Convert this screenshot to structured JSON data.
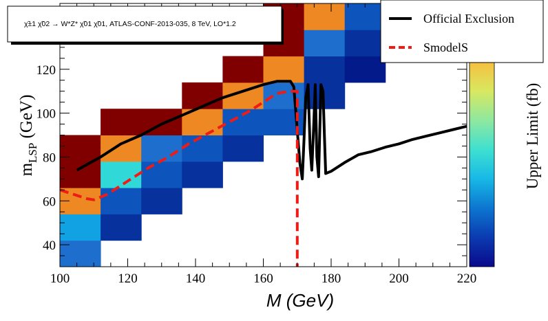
{
  "chart_data": {
    "type": "heatmap",
    "title": "χ̃±1 χ̃02 → W*Z* χ̃01 χ̃01, ATLAS-CONF-2013-035, 8 TeV, LO*1.2",
    "xlabel": "M (GeV)",
    "ylabel": "m",
    "ylabel_subscript": "LSP",
    "ylabel_unit": " (GeV)",
    "colorbar_label": "Upper Limit (fb)",
    "xlim": [
      100,
      220
    ],
    "ylim": [
      30,
      150
    ],
    "xticks": [
      100,
      120,
      140,
      160,
      180,
      200,
      220
    ],
    "yticks": [
      40,
      60,
      80,
      100,
      120
    ],
    "grid": false,
    "legend_position": "top-right",
    "colors": {
      "dark_red": "#800000",
      "orange": "#ee8822",
      "mid_blue": "#1e6fcd",
      "blue": "#0e54bd",
      "dark_blue": "#07319c",
      "navy": "#021a8a",
      "light_blue": "#11a2e4",
      "cyan": "#30d8d8",
      "official_line": "#000000",
      "smodels_line": "#ee1c16"
    },
    "colorbar_gradient": [
      "#0a0a8c",
      "#0b3ab0",
      "#0c76d0",
      "#17b8e6",
      "#3ee0d0",
      "#8ee8a0",
      "#d8e860",
      "#f6c040",
      "#f48a2c",
      "#f05a22"
    ],
    "cells": [
      {
        "x0": 100,
        "x1": 112,
        "y0": 30,
        "y1": 42,
        "color": "mid_blue"
      },
      {
        "x0": 100,
        "x1": 112,
        "y0": 42,
        "y1": 54,
        "color": "light_blue"
      },
      {
        "x0": 100,
        "x1": 112,
        "y0": 54,
        "y1": 66,
        "color": "orange"
      },
      {
        "x0": 100,
        "x1": 112,
        "y0": 66,
        "y1": 78,
        "color": "dark_red"
      },
      {
        "x0": 100,
        "x1": 112,
        "y0": 78,
        "y1": 90,
        "color": "dark_red"
      },
      {
        "x0": 112,
        "x1": 124,
        "y0": 42,
        "y1": 54,
        "color": "dark_blue"
      },
      {
        "x0": 112,
        "x1": 124,
        "y0": 54,
        "y1": 66,
        "color": "blue"
      },
      {
        "x0": 112,
        "x1": 124,
        "y0": 66,
        "y1": 78,
        "color": "cyan"
      },
      {
        "x0": 112,
        "x1": 124,
        "y0": 78,
        "y1": 90,
        "color": "orange"
      },
      {
        "x0": 112,
        "x1": 124,
        "y0": 90,
        "y1": 102,
        "color": "dark_red"
      },
      {
        "x0": 124,
        "x1": 136,
        "y0": 54,
        "y1": 66,
        "color": "dark_blue"
      },
      {
        "x0": 124,
        "x1": 136,
        "y0": 66,
        "y1": 78,
        "color": "blue"
      },
      {
        "x0": 124,
        "x1": 136,
        "y0": 78,
        "y1": 90,
        "color": "mid_blue"
      },
      {
        "x0": 124,
        "x1": 136,
        "y0": 90,
        "y1": 102,
        "color": "dark_red"
      },
      {
        "x0": 136,
        "x1": 148,
        "y0": 66,
        "y1": 78,
        "color": "dark_blue"
      },
      {
        "x0": 136,
        "x1": 148,
        "y0": 78,
        "y1": 90,
        "color": "blue"
      },
      {
        "x0": 136,
        "x1": 148,
        "y0": 90,
        "y1": 102,
        "color": "orange"
      },
      {
        "x0": 136,
        "x1": 148,
        "y0": 102,
        "y1": 114,
        "color": "dark_red"
      },
      {
        "x0": 148,
        "x1": 160,
        "y0": 78,
        "y1": 90,
        "color": "dark_blue"
      },
      {
        "x0": 148,
        "x1": 160,
        "y0": 90,
        "y1": 102,
        "color": "blue"
      },
      {
        "x0": 148,
        "x1": 160,
        "y0": 102,
        "y1": 114,
        "color": "orange"
      },
      {
        "x0": 148,
        "x1": 160,
        "y0": 114,
        "y1": 126,
        "color": "dark_red"
      },
      {
        "x0": 160,
        "x1": 172,
        "y0": 90,
        "y1": 102,
        "color": "blue"
      },
      {
        "x0": 160,
        "x1": 172,
        "y0": 102,
        "y1": 114,
        "color": "mid_blue"
      },
      {
        "x0": 160,
        "x1": 172,
        "y0": 114,
        "y1": 126,
        "color": "orange"
      },
      {
        "x0": 160,
        "x1": 172,
        "y0": 126,
        "y1": 138,
        "color": "dark_red"
      },
      {
        "x0": 160,
        "x1": 172,
        "y0": 138,
        "y1": 150,
        "color": "dark_red"
      },
      {
        "x0": 172,
        "x1": 184,
        "y0": 102,
        "y1": 114,
        "color": "dark_blue"
      },
      {
        "x0": 172,
        "x1": 184,
        "y0": 114,
        "y1": 126,
        "color": "dark_blue"
      },
      {
        "x0": 172,
        "x1": 184,
        "y0": 126,
        "y1": 138,
        "color": "mid_blue"
      },
      {
        "x0": 172,
        "x1": 184,
        "y0": 138,
        "y1": 150,
        "color": "orange"
      },
      {
        "x0": 184,
        "x1": 196,
        "y0": 114,
        "y1": 126,
        "color": "navy"
      },
      {
        "x0": 184,
        "x1": 196,
        "y0": 126,
        "y1": 138,
        "color": "dark_blue"
      },
      {
        "x0": 184,
        "x1": 196,
        "y0": 138,
        "y1": 150,
        "color": "blue"
      },
      {
        "x0": 196,
        "x1": 208,
        "y0": 126,
        "y1": 138,
        "color": "navy"
      }
    ],
    "series": [
      {
        "name": "Official Exclusion",
        "color": "#000000",
        "dash": "solid",
        "x": [
          105,
          112,
          118,
          124,
          130,
          136,
          142,
          148,
          154,
          160,
          164,
          168,
          169,
          170,
          170.8,
          171.5,
          172,
          172.5,
          173.2,
          173.8,
          174.3,
          174.8,
          175.3,
          175.8,
          176.3,
          177,
          177.6,
          178,
          178.4,
          180,
          184,
          188,
          192,
          196,
          200,
          204,
          208,
          212,
          216,
          220
        ],
        "y": [
          74,
          80,
          86,
          90,
          95,
          99,
          103,
          107,
          110,
          113,
          114.5,
          114.5,
          112,
          92,
          77,
          70,
          88,
          107,
          113,
          84,
          74,
          92,
          113,
          80,
          71,
          113,
          110,
          90,
          72.5,
          73.5,
          77.5,
          81,
          82.5,
          84.5,
          86,
          88,
          89.5,
          91,
          92.5,
          94
        ]
      },
      {
        "name": "SmodelS",
        "color": "#ee1c16",
        "dash": "dashed",
        "x": [
          100,
          104,
          108,
          110,
          114,
          120,
          126,
          132,
          138,
          144,
          150,
          156,
          160,
          164,
          168,
          169.5,
          170,
          170,
          170
        ],
        "y": [
          65,
          63,
          61,
          60.5,
          63,
          69,
          75,
          80,
          86,
          91,
          96,
          101,
          105,
          109,
          110,
          110,
          110,
          60,
          30
        ]
      }
    ]
  }
}
